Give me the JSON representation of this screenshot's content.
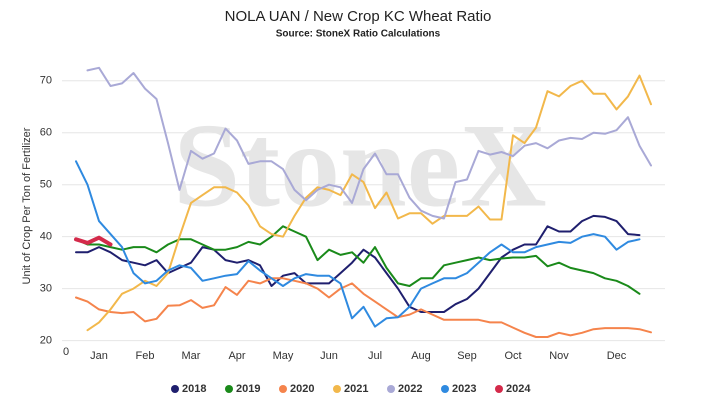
{
  "chart_data": {
    "type": "line",
    "title": "NOLA UAN / New Crop KC Wheat Ratio",
    "subtitle": "Source: StoneX Ratio Calculations",
    "y_label": "Unit of Crop Per Ton of Fertilizer",
    "watermark": "StoneX",
    "corner_label": "0",
    "categories": [
      null,
      null,
      "Jan",
      null,
      null,
      null,
      "Feb",
      null,
      null,
      null,
      "Mar",
      null,
      null,
      null,
      "Apr",
      null,
      null,
      null,
      "May",
      null,
      null,
      null,
      "Jun",
      null,
      null,
      null,
      "Jul",
      null,
      null,
      null,
      "Aug",
      null,
      null,
      null,
      "Sep",
      null,
      null,
      null,
      "Oct",
      null,
      null,
      null,
      "Nov",
      null,
      null,
      null,
      null,
      "Dec",
      null,
      null,
      null
    ],
    "ylim": [
      18,
      74
    ],
    "yticks": [
      20,
      30,
      40,
      50,
      60,
      70
    ],
    "grid": true,
    "legend": "bottom",
    "series": [
      {
        "name": "2018",
        "color": "#1f1f6e",
        "width": 2,
        "values": [
          37,
          37,
          38,
          37,
          35.5,
          35,
          34.5,
          35.5,
          33,
          34,
          35,
          38,
          37.5,
          35.5,
          35,
          35.5,
          34.5,
          30.5,
          32.5,
          33,
          31,
          31,
          31,
          33,
          35,
          37.5,
          36,
          33,
          30,
          26.5,
          25.5,
          25.5,
          25.5,
          27,
          28,
          30,
          33,
          36,
          37.5,
          38.5,
          38.5,
          42,
          41,
          41,
          43,
          44,
          43.8,
          43,
          40.5,
          40.3,
          null
        ]
      },
      {
        "name": "2019",
        "color": "#1a8a1a",
        "width": 2,
        "values": [
          39.5,
          38.5,
          38.5,
          38,
          37.5,
          38,
          38,
          37,
          38.5,
          39.5,
          39.5,
          38.5,
          37.5,
          37.5,
          38,
          39,
          38.5,
          40,
          42,
          41,
          40,
          35.5,
          37.5,
          36.5,
          37,
          35,
          38,
          34,
          31,
          30.5,
          32,
          32,
          34.5,
          35,
          35.5,
          36,
          35.5,
          35.8,
          36,
          36,
          36.3,
          34.3,
          35,
          34,
          33.5,
          33,
          32,
          31.5,
          30.5,
          29,
          null
        ]
      },
      {
        "name": "2020",
        "color": "#f5844c",
        "width": 2,
        "values": [
          28.3,
          27.5,
          26,
          25.5,
          25.3,
          25.5,
          23.7,
          24.2,
          26.7,
          26.8,
          27.8,
          26.3,
          26.8,
          30.3,
          28.8,
          31.5,
          31,
          32,
          32,
          31.5,
          31,
          30,
          28.3,
          30,
          31,
          29,
          27.5,
          26,
          24.5,
          25,
          26,
          25,
          24,
          24,
          24,
          24,
          23.5,
          23.5,
          22.5,
          21.5,
          20.7,
          20.7,
          21.5,
          21,
          21.5,
          22.2,
          22.4,
          22.4,
          22.4,
          22.2,
          21.6
        ]
      },
      {
        "name": "2021",
        "color": "#f2b84b",
        "width": 2,
        "values": [
          null,
          22,
          23.5,
          26,
          29,
          30,
          31.5,
          30.5,
          33,
          40,
          46.5,
          48,
          49.5,
          49.5,
          48.5,
          46,
          42,
          40.5,
          40,
          44,
          47.5,
          49.5,
          49,
          48,
          52,
          50.5,
          45.5,
          48.5,
          43.5,
          44.5,
          44.5,
          42.5,
          44,
          44,
          44,
          45.8,
          43.3,
          43.3,
          59.5,
          58,
          61,
          68,
          67,
          69,
          70,
          67.5,
          67.5,
          64.5,
          67,
          71,
          65.5
        ]
      },
      {
        "name": "2022",
        "color": "#a9a9d6",
        "width": 2,
        "values": [
          null,
          72,
          72.5,
          69,
          69.5,
          71.5,
          68.5,
          66.5,
          58,
          49,
          56.5,
          55,
          56,
          60.8,
          58.5,
          54,
          54.5,
          54.5,
          53,
          49,
          47,
          49,
          50,
          49.5,
          46.5,
          53,
          56,
          52,
          52,
          47.5,
          45,
          44,
          43.5,
          50.5,
          51,
          56.5,
          55.8,
          56.3,
          55.5,
          57.5,
          58,
          57,
          58.5,
          59,
          58.8,
          60,
          59.8,
          60.5,
          63,
          57.5,
          53.7
        ]
      },
      {
        "name": "2023",
        "color": "#2f8ae0",
        "width": 2,
        "values": [
          54.5,
          50,
          43,
          40.5,
          38,
          33,
          31,
          31.5,
          33.5,
          34.5,
          34,
          31.5,
          32,
          32.5,
          32.8,
          35.3,
          33.5,
          32,
          30.5,
          32,
          32.8,
          32.5,
          32.5,
          31,
          24.3,
          26.5,
          22.7,
          24.3,
          24.5,
          26.5,
          30,
          31,
          32,
          32,
          33,
          35,
          37,
          38.5,
          37,
          37,
          38,
          38.5,
          39,
          38.8,
          40,
          40.5,
          40,
          37.5,
          39,
          39.5,
          null
        ]
      },
      {
        "name": "2024",
        "color": "#d42a4a",
        "width": 4,
        "values": [
          39.5,
          38.8,
          39.8,
          38.5,
          null,
          null,
          null,
          null,
          null,
          null,
          null,
          null,
          null,
          null,
          null,
          null,
          null,
          null,
          null,
          null,
          null,
          null,
          null,
          null,
          null,
          null,
          null,
          null,
          null,
          null,
          null,
          null,
          null,
          null,
          null,
          null,
          null,
          null,
          null,
          null,
          null,
          null,
          null,
          null,
          null,
          null,
          null,
          null,
          null,
          null,
          null
        ]
      }
    ]
  }
}
